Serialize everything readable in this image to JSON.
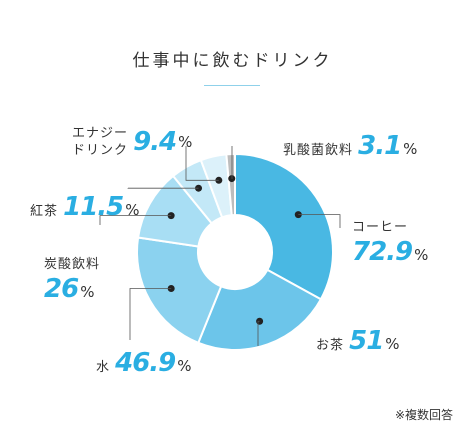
{
  "chart_data": {
    "type": "pie",
    "title": "仕事中に飲むドリンク",
    "unit": "%",
    "note": "※複数回答",
    "categories": [
      "コーヒー",
      "お茶",
      "水",
      "炭酸飲料",
      "紅茶",
      "エナジードリンク",
      "乳酸菌飲料"
    ],
    "values": [
      72.9,
      51,
      46.9,
      26,
      11.5,
      9.4,
      3.1
    ],
    "value_labels": [
      "72.9",
      "51",
      "46.9",
      "26",
      "11.5",
      "9.4",
      "3.1"
    ],
    "colors": [
      "#49b8e3",
      "#6cc5ea",
      "#8bd2ef",
      "#a8def4",
      "#c3e8f7",
      "#dcf1fa",
      "#bdbdbd"
    ]
  }
}
